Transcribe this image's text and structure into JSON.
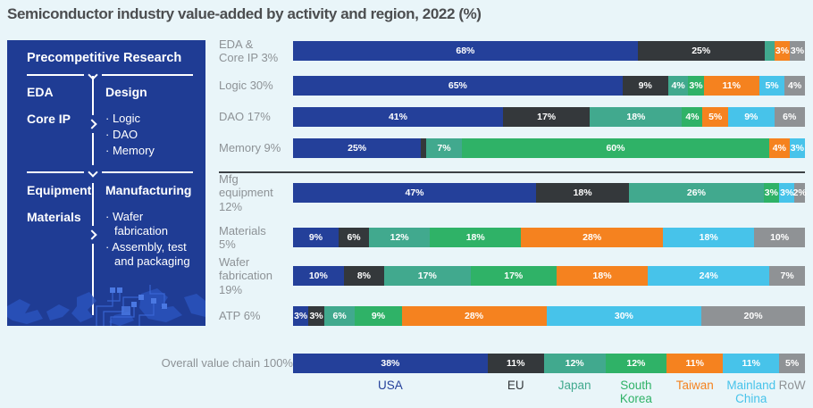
{
  "page": {
    "title": "Semiconductor industry value-added by activity and region, 2022 (%)",
    "background": "#e9f5f9"
  },
  "panel": {
    "background": "#1f3c94",
    "header": "Precompetitive Research",
    "design_group": {
      "left_items": [
        "EDA",
        "Core IP"
      ],
      "right_title": "Design",
      "right_items": [
        "Logic",
        "DAO",
        "Memory"
      ]
    },
    "manufacturing_group": {
      "left_items": [
        "Equipment",
        "Materials"
      ],
      "right_title": "Manufacturing",
      "right_items": [
        "Wafer fabrication",
        "Assembly, test and packaging"
      ]
    }
  },
  "chart_data": {
    "type": "bar",
    "variant": "horizontal-stacked",
    "unit": "%",
    "title": "Semiconductor industry value-added by activity and region, 2022 (%)",
    "legend_position": "bottom",
    "regions": [
      {
        "name": "USA",
        "color": "#24409a",
        "legend_lines": [
          "USA"
        ]
      },
      {
        "name": "EU",
        "color": "#34383b",
        "legend_lines": [
          "EU"
        ]
      },
      {
        "name": "Japan",
        "color": "#41a98e",
        "legend_lines": [
          "Japan"
        ]
      },
      {
        "name": "South Korea",
        "color": "#2fb267",
        "legend_lines": [
          "South",
          "Korea"
        ]
      },
      {
        "name": "Taiwan",
        "color": "#f5821f",
        "legend_lines": [
          "Taiwan"
        ]
      },
      {
        "name": "Mainland China",
        "color": "#47c3ea",
        "legend_lines": [
          "Mainland",
          "China"
        ]
      },
      {
        "name": "RoW",
        "color": "#8f9295",
        "legend_lines": [
          "RoW"
        ]
      }
    ],
    "rows": [
      {
        "id": "eda-core-ip",
        "group": "design",
        "label_lines": [
          "EDA &",
          "Core IP 3%"
        ],
        "segments": [
          {
            "region": "USA",
            "value": 68,
            "label": "68%"
          },
          {
            "region": "EU",
            "value": 25,
            "label": "25%"
          },
          {
            "region": "Japan",
            "value": 2,
            "label": ""
          },
          {
            "region": "Taiwan",
            "value": 3,
            "label": "3%"
          },
          {
            "region": "RoW",
            "value": 3,
            "label": "3%"
          }
        ]
      },
      {
        "id": "logic",
        "group": "design",
        "label_lines": [
          "Logic 30%"
        ],
        "segments": [
          {
            "region": "USA",
            "value": 65,
            "label": "65%"
          },
          {
            "region": "EU",
            "value": 9,
            "label": "9%"
          },
          {
            "region": "Japan",
            "value": 4,
            "label": "4%"
          },
          {
            "region": "South Korea",
            "value": 3,
            "label": "3%"
          },
          {
            "region": "Taiwan",
            "value": 11,
            "label": "11%"
          },
          {
            "region": "Mainland China",
            "value": 5,
            "label": "5%"
          },
          {
            "region": "RoW",
            "value": 4,
            "label": "4%"
          }
        ]
      },
      {
        "id": "dao",
        "group": "design",
        "label_lines": [
          "DAO 17%"
        ],
        "segments": [
          {
            "region": "USA",
            "value": 41,
            "label": "41%"
          },
          {
            "region": "EU",
            "value": 17,
            "label": "17%"
          },
          {
            "region": "Japan",
            "value": 18,
            "label": "18%"
          },
          {
            "region": "South Korea",
            "value": 4,
            "label": "4%"
          },
          {
            "region": "Taiwan",
            "value": 5,
            "label": "5%"
          },
          {
            "region": "Mainland China",
            "value": 9,
            "label": "9%"
          },
          {
            "region": "RoW",
            "value": 6,
            "label": "6%"
          }
        ]
      },
      {
        "id": "memory",
        "group": "design",
        "label_lines": [
          "Memory 9%"
        ],
        "segments": [
          {
            "region": "USA",
            "value": 25,
            "label": "25%"
          },
          {
            "region": "EU",
            "value": 1,
            "label": ""
          },
          {
            "region": "Japan",
            "value": 7,
            "label": "7%"
          },
          {
            "region": "South Korea",
            "value": 60,
            "label": "60%"
          },
          {
            "region": "Taiwan",
            "value": 4,
            "label": "4%"
          },
          {
            "region": "Mainland China",
            "value": 3,
            "label": "3%"
          }
        ]
      },
      {
        "id": "mfg-equipment",
        "group": "manufacturing",
        "label_lines": [
          "Mfg",
          "equipment",
          "12%"
        ],
        "segments": [
          {
            "region": "USA",
            "value": 47,
            "label": "47%"
          },
          {
            "region": "EU",
            "value": 18,
            "label": "18%"
          },
          {
            "region": "Japan",
            "value": 26,
            "label": "26%"
          },
          {
            "region": "South Korea",
            "value": 3,
            "label": "3%"
          },
          {
            "region": "Mainland China",
            "value": 3,
            "label": "3%"
          },
          {
            "region": "RoW",
            "value": 2,
            "label": "2%"
          }
        ]
      },
      {
        "id": "materials",
        "group": "manufacturing",
        "label_lines": [
          "Materials",
          "5%"
        ],
        "segments": [
          {
            "region": "USA",
            "value": 9,
            "label": "9%"
          },
          {
            "region": "EU",
            "value": 6,
            "label": "6%"
          },
          {
            "region": "Japan",
            "value": 12,
            "label": "12%"
          },
          {
            "region": "South Korea",
            "value": 18,
            "label": "18%"
          },
          {
            "region": "Taiwan",
            "value": 28,
            "label": "28%"
          },
          {
            "region": "Mainland China",
            "value": 18,
            "label": "18%"
          },
          {
            "region": "RoW",
            "value": 10,
            "label": "10%"
          }
        ]
      },
      {
        "id": "wafer-fabrication",
        "group": "manufacturing",
        "label_lines": [
          "Wafer",
          "fabrication",
          "19%"
        ],
        "segments": [
          {
            "region": "USA",
            "value": 10,
            "label": "10%"
          },
          {
            "region": "EU",
            "value": 8,
            "label": "8%"
          },
          {
            "region": "Japan",
            "value": 17,
            "label": "17%"
          },
          {
            "region": "South Korea",
            "value": 17,
            "label": "17%"
          },
          {
            "region": "Taiwan",
            "value": 18,
            "label": "18%"
          },
          {
            "region": "Mainland China",
            "value": 24,
            "label": "24%"
          },
          {
            "region": "RoW",
            "value": 7,
            "label": "7%"
          }
        ]
      },
      {
        "id": "atp",
        "group": "manufacturing",
        "label_lines": [
          "ATP 6%"
        ],
        "segments": [
          {
            "region": "USA",
            "value": 3,
            "label": "3%"
          },
          {
            "region": "EU",
            "value": 3,
            "label": "3%"
          },
          {
            "region": "Japan",
            "value": 6,
            "label": "6%"
          },
          {
            "region": "South Korea",
            "value": 9,
            "label": "9%"
          },
          {
            "region": "Taiwan",
            "value": 28,
            "label": "28%"
          },
          {
            "region": "Mainland China",
            "value": 30,
            "label": "30%"
          },
          {
            "region": "RoW",
            "value": 20,
            "label": "20%"
          }
        ]
      },
      {
        "id": "overall",
        "group": "overall",
        "label_lines": [
          "Overall value chain 100%"
        ],
        "segments": [
          {
            "region": "USA",
            "value": 38,
            "label": "38%"
          },
          {
            "region": "EU",
            "value": 11,
            "label": "11%"
          },
          {
            "region": "Japan",
            "value": 12,
            "label": "12%"
          },
          {
            "region": "South Korea",
            "value": 12,
            "label": "12%"
          },
          {
            "region": "Taiwan",
            "value": 11,
            "label": "11%"
          },
          {
            "region": "Mainland China",
            "value": 11,
            "label": "11%"
          },
          {
            "region": "RoW",
            "value": 5,
            "label": "5%"
          }
        ]
      }
    ]
  }
}
